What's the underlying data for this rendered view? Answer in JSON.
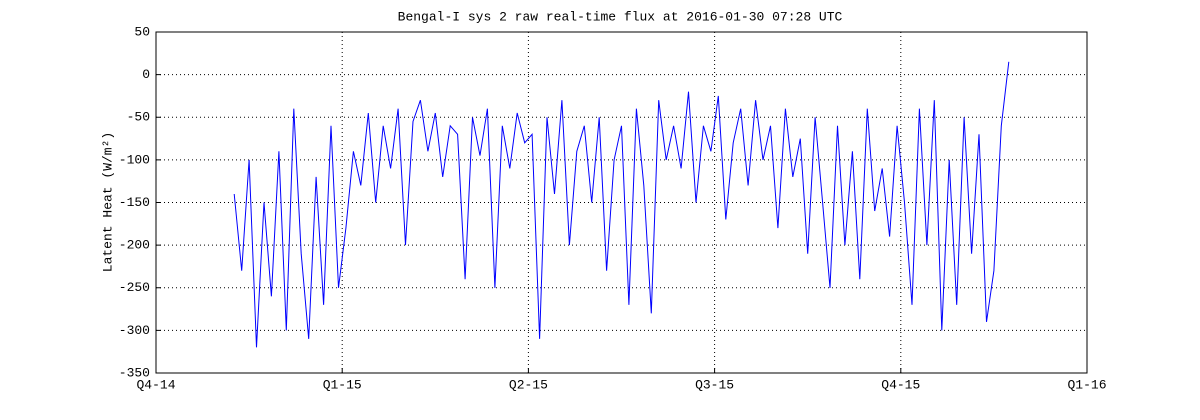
{
  "chart_data": {
    "type": "line",
    "title": "Bengal-I sys 2 raw real-time flux at 2016-01-30 07:28 UTC",
    "y_label": "Latent Heat (W/m²)",
    "color": "#0000ff",
    "grid": true,
    "xlim": [
      0,
      5
    ],
    "xticks": [
      {
        "value": 0,
        "label": "Q4-14"
      },
      {
        "value": 1,
        "label": "Q1-15"
      },
      {
        "value": 2,
        "label": "Q2-15"
      },
      {
        "value": 3,
        "label": "Q3-15"
      },
      {
        "value": 4,
        "label": "Q4-15"
      },
      {
        "value": 5,
        "label": "Q1-16"
      }
    ],
    "ylim": [
      -350,
      50
    ],
    "yticks": [
      -350,
      -300,
      -250,
      -200,
      -150,
      -100,
      -50,
      0,
      50
    ],
    "x": [
      0.42,
      0.46,
      0.5,
      0.54,
      0.58,
      0.62,
      0.66,
      0.7,
      0.74,
      0.78,
      0.82,
      0.86,
      0.9,
      0.94,
      0.98,
      1.02,
      1.06,
      1.1,
      1.14,
      1.18,
      1.22,
      1.26,
      1.3,
      1.34,
      1.38,
      1.42,
      1.46,
      1.5,
      1.54,
      1.58,
      1.62,
      1.66,
      1.7,
      1.74,
      1.78,
      1.82,
      1.86,
      1.9,
      1.94,
      1.98,
      2.02,
      2.06,
      2.1,
      2.14,
      2.18,
      2.22,
      2.26,
      2.3,
      2.34,
      2.38,
      2.42,
      2.46,
      2.5,
      2.54,
      2.58,
      2.62,
      2.66,
      2.7,
      2.74,
      2.78,
      2.82,
      2.86,
      2.9,
      2.94,
      2.98,
      3.02,
      3.06,
      3.1,
      3.14,
      3.18,
      3.22,
      3.26,
      3.3,
      3.34,
      3.38,
      3.42,
      3.46,
      3.5,
      3.54,
      3.58,
      3.62,
      3.66,
      3.7,
      3.74,
      3.78,
      3.82,
      3.86,
      3.9,
      3.94,
      3.98,
      4.02,
      4.06,
      4.1,
      4.14,
      4.18,
      4.22,
      4.26,
      4.3,
      4.34,
      4.38,
      4.42,
      4.46,
      4.5,
      4.54,
      4.58
    ],
    "values": [
      -140,
      -230,
      -100,
      -320,
      -150,
      -260,
      -90,
      -300,
      -40,
      -210,
      -310,
      -120,
      -270,
      -60,
      -250,
      -180,
      -90,
      -130,
      -45,
      -150,
      -60,
      -110,
      -40,
      -200,
      -55,
      -30,
      -90,
      -45,
      -120,
      -60,
      -70,
      -240,
      -50,
      -95,
      -40,
      -250,
      -60,
      -110,
      -45,
      -80,
      -70,
      -310,
      -50,
      -140,
      -30,
      -200,
      -90,
      -60,
      -150,
      -50,
      -230,
      -100,
      -60,
      -270,
      -40,
      -130,
      -280,
      -30,
      -100,
      -60,
      -110,
      -20,
      -150,
      -60,
      -90,
      -25,
      -170,
      -80,
      -40,
      -130,
      -30,
      -100,
      -60,
      -180,
      -40,
      -120,
      -75,
      -210,
      -50,
      -150,
      -250,
      -60,
      -200,
      -90,
      -240,
      -40,
      -160,
      -110,
      -190,
      -60,
      -150,
      -270,
      -40,
      -200,
      -30,
      -300,
      -100,
      -270,
      -50,
      -210,
      -70,
      -290,
      -230,
      -60,
      15
    ]
  }
}
